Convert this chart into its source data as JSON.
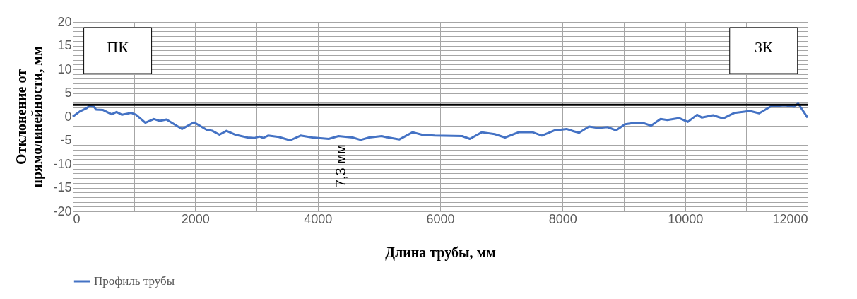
{
  "chart_data": {
    "type": "line",
    "xlabel": "Длина трубы, мм",
    "ylabel": "Отклонение от прямолинейности, мм",
    "x": [
      0,
      115,
      230,
      265,
      345,
      380,
      495,
      635,
      715,
      805,
      955,
      1035,
      1185,
      1325,
      1420,
      1530,
      1785,
      1980,
      2190,
      2280,
      2395,
      2510,
      2650,
      2855,
      2970,
      3050,
      3110,
      3190,
      3365,
      3550,
      3720,
      3915,
      4180,
      4340,
      4570,
      4700,
      4840,
      5045,
      5105,
      5335,
      5550,
      5700,
      5910,
      6360,
      6485,
      6680,
      6890,
      7060,
      7280,
      7510,
      7660,
      7870,
      8065,
      8180,
      8270,
      8430,
      8580,
      8735,
      8870,
      9020,
      9180,
      9330,
      9445,
      9600,
      9710,
      9905,
      10045,
      10195,
      10275,
      10460,
      10620,
      10805,
      11060,
      11210,
      11405,
      11635,
      11785,
      11845,
      12000
    ],
    "series": [
      {
        "name": "Профиль трубы",
        "color": "#4472c4",
        "values": [
          0.0,
          1.1,
          1.8,
          2.2,
          2.1,
          1.5,
          1.4,
          0.5,
          1.0,
          0.4,
          0.8,
          0.4,
          -1.3,
          -0.5,
          -0.9,
          -0.6,
          -2.6,
          -1.2,
          -2.8,
          -3.0,
          -3.8,
          -3.0,
          -3.8,
          -4.4,
          -4.5,
          -4.2,
          -4.5,
          -4.0,
          -4.3,
          -5.0,
          -4.0,
          -4.4,
          -4.7,
          -4.1,
          -4.4,
          -4.9,
          -4.4,
          -4.1,
          -4.3,
          -4.8,
          -3.3,
          -3.8,
          -4.0,
          -4.1,
          -4.7,
          -3.3,
          -3.7,
          -4.4,
          -3.3,
          -3.3,
          -4.0,
          -2.9,
          -2.6,
          -3.1,
          -3.4,
          -2.1,
          -2.4,
          -2.2,
          -2.9,
          -1.6,
          -1.3,
          -1.4,
          -1.9,
          -0.5,
          -0.7,
          -0.3,
          -1.1,
          0.4,
          -0.2,
          0.3,
          -0.4,
          0.8,
          1.2,
          0.7,
          2.2,
          2.4,
          2.1,
          2.8,
          -0.2
        ]
      }
    ],
    "xlim": [
      0,
      12000
    ],
    "xticks": [
      0,
      {
        "value": 1000,
        "label": null
      },
      2000,
      {
        "value": 3000,
        "label": null
      },
      4000,
      {
        "value": 5000,
        "label": null
      },
      6000,
      {
        "value": 7000,
        "label": null
      },
      8000,
      {
        "value": 9000,
        "label": null
      },
      10000,
      {
        "value": 11000,
        "label": null
      },
      12000
    ],
    "ylim": [
      -20,
      20
    ],
    "yticks": [
      -20,
      {
        "value": -19,
        "label": null
      },
      {
        "value": -18,
        "label": null
      },
      {
        "value": -17,
        "label": null
      },
      {
        "value": -16,
        "label": null
      },
      -15,
      {
        "value": -14,
        "label": null
      },
      {
        "value": -13,
        "label": null
      },
      {
        "value": -12,
        "label": null
      },
      {
        "value": -11,
        "label": null
      },
      -10,
      {
        "value": -9,
        "label": null
      },
      {
        "value": -8,
        "label": null
      },
      {
        "value": -7,
        "label": null
      },
      {
        "value": -6,
        "label": null
      },
      -5,
      {
        "value": -4,
        "label": null
      },
      {
        "value": -3,
        "label": null
      },
      {
        "value": -2,
        "label": null
      },
      {
        "value": -1,
        "label": null
      },
      0,
      {
        "value": 1,
        "label": null
      },
      {
        "value": 2,
        "label": null
      },
      {
        "value": 3,
        "label": null
      },
      {
        "value": 4,
        "label": null
      },
      5,
      {
        "value": 6,
        "label": null
      },
      {
        "value": 7,
        "label": null
      },
      {
        "value": 8,
        "label": null
      },
      {
        "value": 9,
        "label": null
      },
      10,
      {
        "value": 11,
        "label": null
      },
      {
        "value": 12,
        "label": null
      },
      {
        "value": 13,
        "label": null
      },
      {
        "value": 14,
        "label": null
      },
      15,
      {
        "value": 16,
        "label": null
      },
      {
        "value": 17,
        "label": null
      },
      {
        "value": 18,
        "label": null
      },
      {
        "value": 19,
        "label": null
      },
      20
    ],
    "ref_lines": [
      {
        "axis": "y",
        "value": 2.5,
        "color": "#000000"
      }
    ],
    "annotations": [
      "ПК",
      "ЗК",
      "7,3 мм"
    ],
    "grid": true,
    "legend": "bottom",
    "marker": "none",
    "line_style": "solid"
  }
}
